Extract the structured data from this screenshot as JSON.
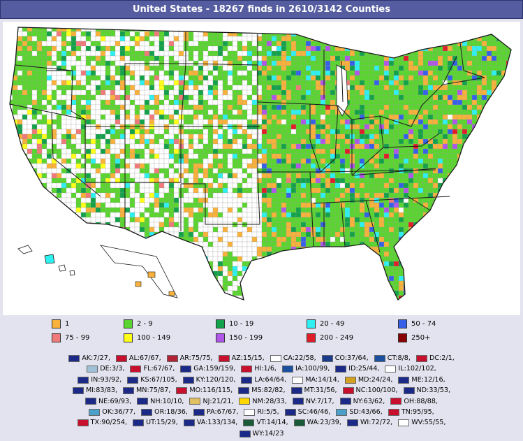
{
  "title": "United States - 18267 finds in 2610/3142 Counties",
  "colors": {
    "c1": "#f8b13a",
    "c2": "#5ad52f",
    "c3": "#13a24a",
    "c4": "#2ef0f0",
    "c5": "#3760e8",
    "c6": "#f07a7a",
    "c7": "#ffff1a",
    "c8": "#b056e8",
    "c9": "#e01e2a",
    "c10": "#8a0000",
    "none": "#ffffff",
    "border": "#1a1a1a"
  },
  "legend": [
    {
      "label": "1",
      "color": "#f8b13a"
    },
    {
      "label": "2 - 9",
      "color": "#5ad52f"
    },
    {
      "label": "10 - 19",
      "color": "#13a24a"
    },
    {
      "label": "20 - 49",
      "color": "#2ef0f0"
    },
    {
      "label": "50 - 74",
      "color": "#3760e8"
    },
    {
      "label": "75 - 99",
      "color": "#f07a7a"
    },
    {
      "label": "100 - 149",
      "color": "#ffff1a"
    },
    {
      "label": "150 - 199",
      "color": "#b056e8"
    },
    {
      "label": "200 - 249",
      "color": "#e01e2a"
    },
    {
      "label": "250+",
      "color": "#8a0000"
    }
  ],
  "state_rows": [
    [
      "AK:7/27,",
      "AL:67/67,",
      "AR:75/75,",
      "AZ:15/15,",
      "CA:22/58,",
      "CO:37/64,",
      "CT:8/8,",
      "DC:2/1,"
    ],
    [
      "DE:3/3,",
      "FL:67/67,",
      "GA:159/159,",
      "HI:1/6,",
      "IA:100/99,",
      "ID:25/44,",
      "IL:102/102,"
    ],
    [
      "IN:93/92,",
      "KS:67/105,",
      "KY:120/120,",
      "LA:64/64,",
      "MA:14/14,",
      "MD:24/24,",
      "ME:12/16,"
    ],
    [
      "MI:83/83,",
      "MN:75/87,",
      "MO:116/115,",
      "MS:82/82,",
      "MT:31/56,",
      "NC:100/100,",
      "ND:33/53,"
    ],
    [
      "NE:69/93,",
      "NH:10/10,",
      "NJ:21/21,",
      "NM:28/33,",
      "NV:7/17,",
      "NY:63/62,",
      "OH:88/88,"
    ],
    [
      "OK:36/77,",
      "OR:18/36,",
      "PA:67/67,",
      "RI:5/5,",
      "SC:46/46,",
      "SD:43/66,",
      "TN:95/95,"
    ],
    [
      "TX:90/254,",
      "UT:15/29,",
      "VA:133/134,",
      "VT:14/14,",
      "WA:23/39,",
      "WI:72/72,",
      "WV:55/55,"
    ],
    [
      "WY:14/23"
    ]
  ],
  "flag_colors": [
    [
      "#1b2a88",
      "#c8102e",
      "#b22234",
      "#c8102e",
      "#ffffff",
      "#1b3c8c",
      "#1b50a0",
      "#c8102e"
    ],
    [
      "#a0c0d8",
      "#c8102e",
      "#1b2a88",
      "#c8102e",
      "#1b50a0",
      "#1b2a88",
      "#ffffff"
    ],
    [
      "#1b2a88",
      "#1b2a88",
      "#1b2a88",
      "#1b2a88",
      "#ffffff",
      "#d4a020",
      "#1b2a88"
    ],
    [
      "#1b2a88",
      "#1b2a88",
      "#c8102e",
      "#1b2a88",
      "#1b2a88",
      "#c8102e",
      "#1b2a88"
    ],
    [
      "#1b2a88",
      "#1b2a88",
      "#e0c060",
      "#ffd700",
      "#1b2a88",
      "#1b2a88",
      "#c8102e"
    ],
    [
      "#4aa0c8",
      "#1b2a88",
      "#1b2a88",
      "#ffffff",
      "#1b2a88",
      "#4aa0c8",
      "#c8102e"
    ],
    [
      "#c8102e",
      "#1b2a88",
      "#1b2a88",
      "#1b5a38",
      "#1b5a38",
      "#1b2a88",
      "#ffffff"
    ],
    [
      "#1b2a88"
    ]
  ]
}
